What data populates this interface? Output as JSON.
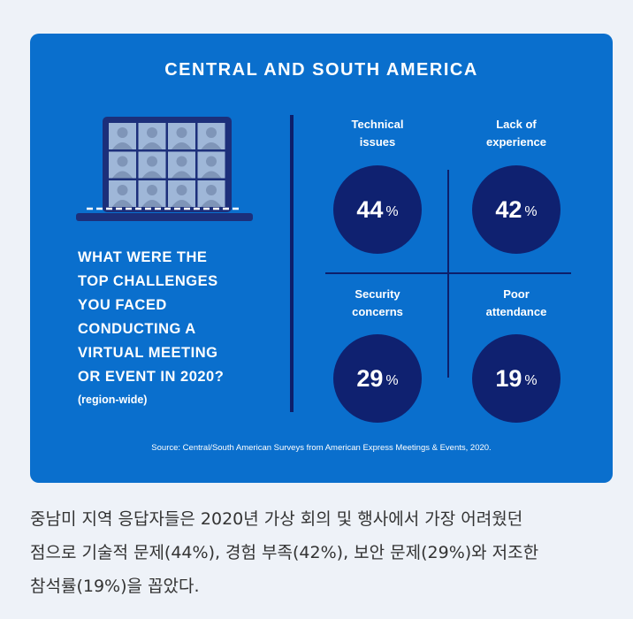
{
  "title": "CENTRAL AND SOUTH AMERICA",
  "question_lines": [
    "WHAT WERE THE",
    "TOP CHALLENGES",
    "YOU FACED",
    "CONDUCTING A",
    "VIRTUAL MEETING",
    "OR EVENT IN 2020?"
  ],
  "region": "(region-wide)",
  "chart_data": {
    "type": "table",
    "title": "CENTRAL AND SOUTH AMERICA",
    "unit": "%",
    "items": [
      {
        "label_lines": [
          "Technical",
          "issues"
        ],
        "value": 44
      },
      {
        "label_lines": [
          "Lack of",
          "experience"
        ],
        "value": 42
      },
      {
        "label_lines": [
          "Security",
          "concerns"
        ],
        "value": 29
      },
      {
        "label_lines": [
          "Poor",
          "attendance"
        ],
        "value": 19
      }
    ]
  },
  "source": "Source: Central/South American Surveys from American Express Meetings & Events, 2020.",
  "caption_lines": [
    "중남미 지역 응답자들은 2020년 가상 회의 및 행사에서 가장 어려웠던",
    "점으로 기술적 문제(44%), 경험 부족(42%), 보안 문제(29%)와 저조한",
    "참석률(19%)을 꼽았다."
  ],
  "colors": {
    "card": "#0a6fcd",
    "circle": "#0f2170",
    "screen": "#1c2f7a",
    "tile": "#9fb7d8",
    "person": "#7f95b8",
    "background": "#eef2f8"
  },
  "icons": {
    "laptop": "video-conference-laptop-icon"
  }
}
